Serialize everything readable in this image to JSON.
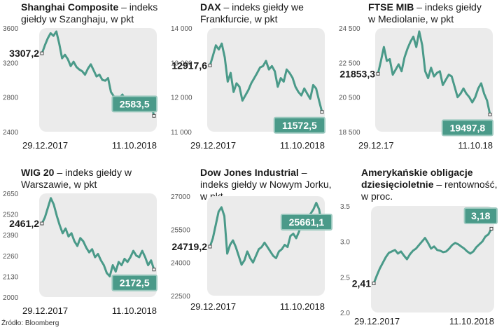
{
  "source": "Źródło: Bloomberg",
  "colors": {
    "line": "#4a9a89",
    "plot_bg": "#ebebeb",
    "badge": "#4a9a89",
    "badge_border": "#9cc9bf"
  },
  "chart_data": [
    {
      "type": "line",
      "title_bold": "Shanghai Composite",
      "title_rest": " – indeks giełdy w Szanghaju, w pkt",
      "yticks": [
        "3600",
        "3200",
        "2800",
        "2400"
      ],
      "ylim": [
        2400,
        3600
      ],
      "x_start": "29.12.2017",
      "x_end": "11.10.2018",
      "start_label": "3307,2",
      "end_label": "2583,5",
      "values": [
        3307.2,
        3400,
        3480,
        3540,
        3510,
        3560,
        3420,
        3250,
        3290,
        3240,
        3160,
        3210,
        3150,
        3120,
        3100,
        3060,
        3130,
        3180,
        3110,
        3040,
        3060,
        3000,
        2990,
        3020,
        2860,
        2810,
        2740,
        2790,
        2830,
        2770,
        2720,
        2680,
        2750,
        2700,
        2680,
        2790,
        2700,
        2690,
        2720,
        2583.5
      ]
    },
    {
      "type": "line",
      "title_bold": "DAX",
      "title_rest": " – indeks giełdy we Frankfurcie, w pkt",
      "yticks": [
        "14 000",
        "13 000",
        "12 000",
        "11 000"
      ],
      "ylim": [
        11000,
        14000
      ],
      "x_start": "29.12.2017",
      "x_end": "11.10.2018",
      "start_label": "12917,6",
      "end_label": "11572,5",
      "values": [
        12917.6,
        13200,
        13500,
        13380,
        13550,
        13150,
        12450,
        12700,
        12150,
        12400,
        12300,
        11900,
        12050,
        12200,
        12400,
        12550,
        12700,
        12860,
        12900,
        13050,
        12800,
        12900,
        12750,
        12300,
        12550,
        12450,
        12800,
        12700,
        12560,
        12300,
        12150,
        12050,
        12250,
        12100,
        11950,
        12350,
        12250,
        11900,
        11572.5
      ]
    },
    {
      "type": "line",
      "title_bold": "FTSE MIB",
      "title_rest": " – indeks giełdy w Mediolanie, w pkt",
      "yticks": [
        "24 500",
        "22 500",
        "20 500",
        "18 500"
      ],
      "ylim": [
        18500,
        24500
      ],
      "x_start": "29.12.17",
      "x_end": "11.10.18",
      "start_label": "21853,3",
      "end_label": "19497,8",
      "values": [
        21853.3,
        22600,
        23400,
        22600,
        22700,
        21800,
        22100,
        22400,
        22000,
        22800,
        23300,
        23700,
        24000,
        23400,
        24300,
        23500,
        22000,
        21600,
        22200,
        21700,
        21900,
        22000,
        21200,
        21500,
        21800,
        21700,
        21100,
        20500,
        20700,
        21000,
        20700,
        20500,
        20200,
        20500,
        21000,
        21300,
        20700,
        20300,
        19497.8
      ]
    },
    {
      "type": "line",
      "title_bold": "WIG 20",
      "title_rest": " – indeks giełdy w Warszawie, w pkt",
      "yticks": [
        "2650",
        "2520",
        "2390",
        "2260",
        "2130",
        "2000"
      ],
      "ylim": [
        2000,
        2650
      ],
      "x_start": "29.12.2017",
      "x_end": "11.10.2018",
      "start_label": "2461,2",
      "end_label": "2172,5",
      "values": [
        2461.2,
        2500,
        2560,
        2620,
        2580,
        2510,
        2450,
        2400,
        2430,
        2380,
        2400,
        2350,
        2320,
        2370,
        2350,
        2310,
        2280,
        2300,
        2250,
        2270,
        2230,
        2200,
        2150,
        2130,
        2200,
        2160,
        2220,
        2200,
        2240,
        2220,
        2250,
        2290,
        2260,
        2250,
        2290,
        2250,
        2200,
        2230,
        2172.5
      ]
    },
    {
      "type": "line",
      "title_bold": "Dow Jones Industrial",
      "title_rest": " – indeks giełdy w Nowym Jorku, w pkt",
      "yticks": [
        "27000",
        "25500",
        "24000",
        "22500"
      ],
      "ylim": [
        22500,
        27000
      ],
      "x_start": "29.12.2017",
      "x_end": "11.10.2018",
      "start_label": "24719,2",
      "end_label": "25661,1",
      "values": [
        24719.2,
        25100,
        25700,
        26300,
        26500,
        26100,
        24400,
        24800,
        25000,
        24700,
        24300,
        23900,
        24100,
        24500,
        24200,
        24000,
        24300,
        24600,
        24700,
        24900,
        24700,
        24500,
        24300,
        24200,
        24500,
        24600,
        24800,
        24700,
        25200,
        25300,
        25100,
        25400,
        25800,
        25900,
        26000,
        26200,
        26400,
        26700,
        26400,
        25661.1
      ]
    },
    {
      "type": "line",
      "title_bold": "Amerykańskie obligacje dziesięcioletnie",
      "title_rest": " – rentowność, w proc.",
      "yticks": [
        "3.5",
        "3.0",
        "2.5",
        "2.0"
      ],
      "ylim": [
        2.0,
        3.5
      ],
      "x_start": "29.12.2017",
      "x_end": "11.10.2018",
      "start_label": "2,41",
      "end_label": "3,18",
      "values": [
        2.41,
        2.52,
        2.62,
        2.7,
        2.78,
        2.84,
        2.86,
        2.88,
        2.83,
        2.86,
        2.8,
        2.75,
        2.82,
        2.87,
        2.9,
        2.95,
        3.0,
        3.05,
        2.98,
        2.9,
        2.93,
        2.88,
        2.87,
        2.85,
        2.86,
        2.9,
        2.95,
        2.98,
        2.96,
        2.93,
        2.9,
        2.86,
        2.83,
        2.86,
        2.92,
        2.96,
        3.0,
        3.07,
        3.1,
        3.18
      ]
    }
  ]
}
